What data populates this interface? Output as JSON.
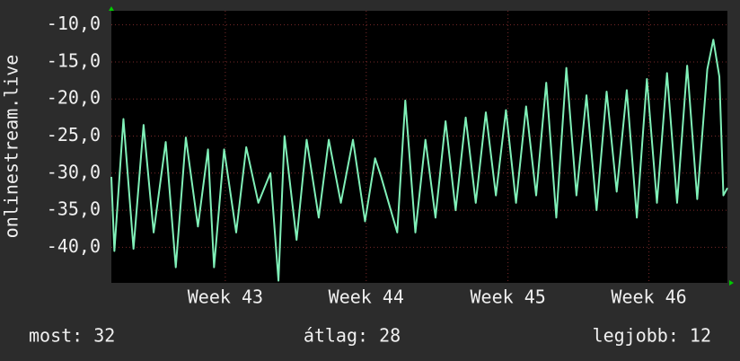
{
  "chart_data": {
    "type": "line",
    "y_label": "onlinestream.live",
    "x": [
      0,
      0.15,
      0.6,
      1.1,
      1.6,
      2.1,
      2.7,
      3.2,
      3.7,
      4.3,
      4.8,
      5.1,
      5.6,
      6.2,
      6.7,
      7.3,
      7.9,
      8.3,
      8.6,
      9.2,
      9.7,
      10.3,
      10.8,
      11.4,
      12.0,
      12.6,
      13.1,
      13.4,
      14.2,
      14.6,
      15.1,
      15.6,
      16.1,
      16.6,
      17.1,
      17.6,
      18.1,
      18.6,
      19.1,
      19.6,
      20.1,
      20.6,
      21.1,
      21.6,
      22.1,
      22.6,
      23.1,
      23.6,
      24.1,
      24.6,
      25.1,
      25.6,
      26.1,
      26.6,
      27.1,
      27.6,
      28.1,
      28.6,
      29.1,
      29.6,
      29.9,
      30.2,
      30.4,
      30.6
    ],
    "series": [
      {
        "name": "onlinestream.live",
        "color": "#80f0b8",
        "values": [
          -30.5,
          -40.5,
          -22.7,
          -40.2,
          -23.5,
          -38,
          -25.8,
          -42.7,
          -25.2,
          -37.2,
          -26.8,
          -42.7,
          -26.8,
          -38,
          -26.5,
          -34,
          -30,
          -44.5,
          -25,
          -39,
          -25.5,
          -36,
          -25.5,
          -34,
          -25.5,
          -36.5,
          -28,
          -30.5,
          -38,
          -20.2,
          -38,
          -25.5,
          -36,
          -23,
          -35,
          -22.5,
          -34,
          -21.8,
          -33,
          -21.5,
          -34,
          -21,
          -33,
          -17.8,
          -36,
          -15.8,
          -33,
          -19.5,
          -35,
          -19,
          -32.5,
          -18.8,
          -36,
          -17.3,
          -34,
          -16.5,
          -34,
          -15.5,
          -33.5,
          -16,
          -12,
          -17,
          -33,
          -32
        ]
      }
    ],
    "xlim": [
      0,
      30.6
    ],
    "xticks": [
      {
        "value": 5.66,
        "label": "Week 43"
      },
      {
        "value": 12.66,
        "label": "Week 44"
      },
      {
        "value": 19.7,
        "label": "Week 45"
      },
      {
        "value": 26.7,
        "label": "Week 46"
      }
    ],
    "ylim": [
      -44.8,
      -8.1
    ],
    "yticks": [
      {
        "value": -10,
        "label": "-10,0"
      },
      {
        "value": -15,
        "label": "-15,0"
      },
      {
        "value": -20,
        "label": "-20,0"
      },
      {
        "value": -25,
        "label": "-25,0"
      },
      {
        "value": -30,
        "label": "-30,0"
      },
      {
        "value": -35,
        "label": "-35,0"
      },
      {
        "value": -40,
        "label": "-40,0"
      }
    ],
    "grid": true,
    "footer": [
      "most: 32",
      "átlag: 28",
      "legjobb: 12"
    ]
  }
}
